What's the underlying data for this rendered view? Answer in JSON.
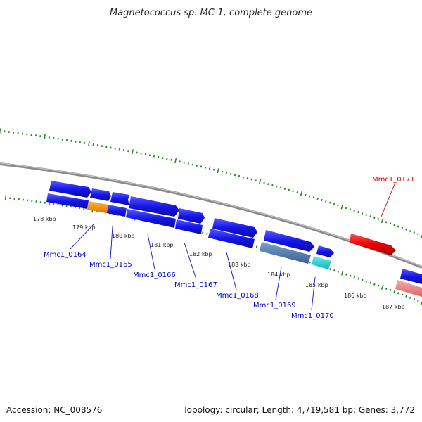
{
  "title": "Magnetococcus sp. MC-1, complete genome",
  "footer": {
    "accession": "Accession: NC_008576",
    "topology": "Topology: circular; Length: 4,719,581 bp; Genes: 3,772"
  },
  "colors": {
    "backbone": "#888888",
    "tick": "#228b22",
    "gene_blue": "#1a1aee",
    "gene_highlight": "#ee0000",
    "label_blue": "#0000cc",
    "label_red": "#cc0000"
  },
  "scale_labels": [
    "178 kbp",
    "179 kbp",
    "180 kbp",
    "181 kbp",
    "182 kbp",
    "183 kbp",
    "184 kbp",
    "185 kbp",
    "186 kbp",
    "187 kbp"
  ],
  "gene_labels": [
    {
      "id": "Mmc1_0164",
      "color": "#0000cc"
    },
    {
      "id": "Mmc1_0165",
      "color": "#0000cc"
    },
    {
      "id": "Mmc1_0166",
      "color": "#0000cc"
    },
    {
      "id": "Mmc1_0167",
      "color": "#0000cc"
    },
    {
      "id": "Mmc1_0168",
      "color": "#0000cc"
    },
    {
      "id": "Mmc1_0169",
      "color": "#0000cc"
    },
    {
      "id": "Mmc1_0170",
      "color": "#0000cc"
    },
    {
      "id": "Mmc1_0171",
      "color": "#cc0000"
    }
  ]
}
